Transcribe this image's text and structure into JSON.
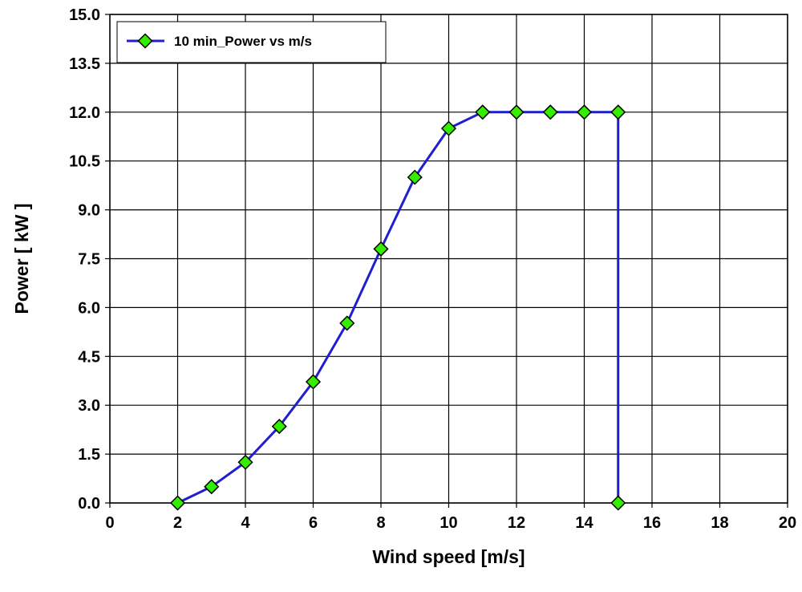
{
  "chart_data": {
    "type": "line",
    "xlabel": "Wind speed [m/s]",
    "ylabel": "Power [ kW ]",
    "xlim": [
      0,
      20
    ],
    "ylim": [
      0,
      15
    ],
    "x_ticks": [
      "0",
      "2",
      "4",
      "6",
      "8",
      "10",
      "12",
      "14",
      "16",
      "18",
      "20"
    ],
    "y_ticks": [
      "0.0",
      "1.5",
      "3.0",
      "4.5",
      "6.0",
      "7.5",
      "9.0",
      "10.5",
      "12.0",
      "13.5",
      "15.0"
    ],
    "grid": true,
    "legend_position": "top-left",
    "series": [
      {
        "name": "10 min_Power vs m/s",
        "color": "#1f1fd0",
        "marker_color": "#33ee00",
        "marker": "diamond",
        "x": [
          2,
          3,
          4,
          5,
          6,
          7,
          8,
          9,
          10,
          11,
          12,
          13,
          14,
          15,
          15
        ],
        "y": [
          0.0,
          0.5,
          1.25,
          2.35,
          3.72,
          5.52,
          7.8,
          10.0,
          11.5,
          12.0,
          12.0,
          12.0,
          12.0,
          12.0,
          0.0
        ]
      }
    ]
  }
}
